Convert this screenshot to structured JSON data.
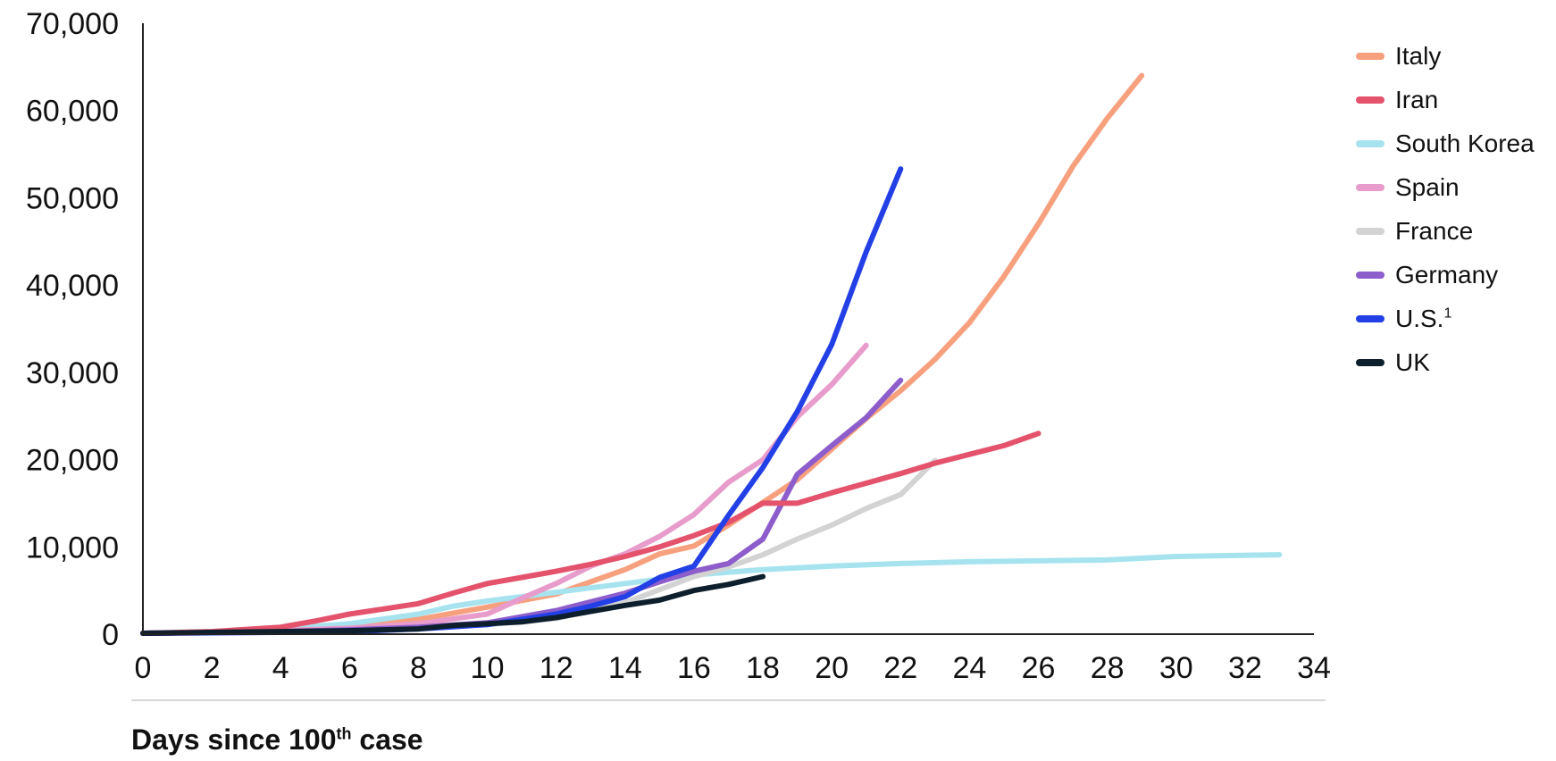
{
  "chart_data": {
    "type": "line",
    "xlabel": {
      "prefix": "Days since 100",
      "sup": "th",
      "suffix": " case"
    },
    "xlim": [
      0,
      34
    ],
    "ylim": [
      0,
      70000
    ],
    "xticks": [
      0,
      2,
      4,
      6,
      8,
      10,
      12,
      14,
      16,
      18,
      20,
      22,
      24,
      26,
      28,
      30,
      32,
      34
    ],
    "xtick_labels": [
      "0",
      "2",
      "4",
      "6",
      "8",
      "10",
      "12",
      "14",
      "16",
      "18",
      "20",
      "22",
      "24",
      "26",
      "28",
      "30",
      "32",
      "34"
    ],
    "yticks": [
      0,
      10000,
      20000,
      30000,
      40000,
      50000,
      60000,
      70000
    ],
    "ytick_labels": [
      "0",
      "10,000",
      "20,000",
      "30,000",
      "40,000",
      "50,000",
      "60,000",
      "70,000"
    ],
    "grid": false,
    "legend_position": "right",
    "series": [
      {
        "name": "Italy",
        "color": "#F7A07E",
        "points": [
          [
            0,
            100
          ],
          [
            2,
            200
          ],
          [
            4,
            400
          ],
          [
            6,
            800
          ],
          [
            8,
            1700
          ],
          [
            10,
            3100
          ],
          [
            12,
            4600
          ],
          [
            14,
            7400
          ],
          [
            15,
            9200
          ],
          [
            16,
            10100
          ],
          [
            17,
            12500
          ],
          [
            18,
            15100
          ],
          [
            19,
            17700
          ],
          [
            20,
            21200
          ],
          [
            21,
            24700
          ],
          [
            22,
            27900
          ],
          [
            23,
            31500
          ],
          [
            24,
            35700
          ],
          [
            25,
            41000
          ],
          [
            26,
            47000
          ],
          [
            27,
            53600
          ],
          [
            28,
            59100
          ],
          [
            29,
            64000
          ]
        ]
      },
      {
        "name": "South Korea",
        "color": "#A6E3EF",
        "points": [
          [
            0,
            100
          ],
          [
            2,
            300
          ],
          [
            4,
            600
          ],
          [
            6,
            1200
          ],
          [
            8,
            2300
          ],
          [
            9,
            3200
          ],
          [
            10,
            3800
          ],
          [
            11,
            4300
          ],
          [
            12,
            4800
          ],
          [
            14,
            5800
          ],
          [
            16,
            6800
          ],
          [
            18,
            7400
          ],
          [
            20,
            7800
          ],
          [
            22,
            8100
          ],
          [
            24,
            8300
          ],
          [
            26,
            8400
          ],
          [
            28,
            8500
          ],
          [
            30,
            8900
          ],
          [
            33,
            9100
          ]
        ]
      },
      {
        "name": "France",
        "color": "#D3D3D3",
        "points": [
          [
            0,
            100
          ],
          [
            2,
            200
          ],
          [
            4,
            300
          ],
          [
            6,
            400
          ],
          [
            8,
            700
          ],
          [
            10,
            1100
          ],
          [
            12,
            1800
          ],
          [
            14,
            3600
          ],
          [
            16,
            6600
          ],
          [
            17,
            7700
          ],
          [
            18,
            9100
          ],
          [
            19,
            10900
          ],
          [
            20,
            12500
          ],
          [
            21,
            14400
          ],
          [
            22,
            16000
          ],
          [
            23,
            19900
          ]
        ]
      },
      {
        "name": "Spain",
        "color": "#E89CCB",
        "points": [
          [
            0,
            100
          ],
          [
            2,
            200
          ],
          [
            4,
            400
          ],
          [
            6,
            700
          ],
          [
            8,
            1200
          ],
          [
            10,
            2300
          ],
          [
            11,
            4100
          ],
          [
            12,
            5800
          ],
          [
            13,
            7800
          ],
          [
            14,
            9200
          ],
          [
            15,
            11200
          ],
          [
            16,
            13700
          ],
          [
            17,
            17400
          ],
          [
            18,
            20000
          ],
          [
            19,
            24900
          ],
          [
            20,
            28600
          ],
          [
            21,
            33100
          ]
        ]
      },
      {
        "name": "Germany",
        "color": "#8D5DCB",
        "points": [
          [
            0,
            100
          ],
          [
            2,
            200
          ],
          [
            4,
            300
          ],
          [
            6,
            500
          ],
          [
            8,
            800
          ],
          [
            10,
            1300
          ],
          [
            12,
            2700
          ],
          [
            14,
            4700
          ],
          [
            15,
            6000
          ],
          [
            16,
            7200
          ],
          [
            17,
            8100
          ],
          [
            18,
            10900
          ],
          [
            19,
            18300
          ],
          [
            20,
            21600
          ],
          [
            21,
            24800
          ],
          [
            22,
            29100
          ]
        ]
      },
      {
        "name": "Iran",
        "color": "#E4526C",
        "points": [
          [
            0,
            100
          ],
          [
            2,
            300
          ],
          [
            4,
            800
          ],
          [
            5,
            1500
          ],
          [
            6,
            2300
          ],
          [
            7,
            2900
          ],
          [
            8,
            3500
          ],
          [
            9,
            4700
          ],
          [
            10,
            5800
          ],
          [
            11,
            6500
          ],
          [
            12,
            7200
          ],
          [
            13,
            8000
          ],
          [
            14,
            8900
          ],
          [
            15,
            10000
          ],
          [
            16,
            11300
          ],
          [
            17,
            12800
          ],
          [
            18,
            15000
          ],
          [
            19,
            15000
          ],
          [
            20,
            16200
          ],
          [
            21,
            17300
          ],
          [
            22,
            18400
          ],
          [
            23,
            19600
          ],
          [
            24,
            20600
          ],
          [
            25,
            21600
          ],
          [
            26,
            23000
          ]
        ]
      },
      {
        "name": "U.S.",
        "name_sup": "1",
        "color": "#2340E6",
        "points": [
          [
            0,
            100
          ],
          [
            4,
            200
          ],
          [
            6,
            300
          ],
          [
            8,
            600
          ],
          [
            10,
            1100
          ],
          [
            12,
            2300
          ],
          [
            13,
            3200
          ],
          [
            14,
            4300
          ],
          [
            15,
            6500
          ],
          [
            16,
            7800
          ],
          [
            17,
            13600
          ],
          [
            18,
            19100
          ],
          [
            19,
            25500
          ],
          [
            20,
            33200
          ],
          [
            21,
            43800
          ],
          [
            22,
            53300
          ]
        ]
      },
      {
        "name": "UK",
        "color": "#0D1F2D",
        "points": [
          [
            0,
            100
          ],
          [
            2,
            200
          ],
          [
            4,
            300
          ],
          [
            6,
            400
          ],
          [
            8,
            600
          ],
          [
            9,
            1000
          ],
          [
            10,
            1200
          ],
          [
            11,
            1400
          ],
          [
            12,
            1900
          ],
          [
            13,
            2600
          ],
          [
            14,
            3300
          ],
          [
            15,
            3900
          ],
          [
            16,
            5000
          ],
          [
            17,
            5700
          ],
          [
            18,
            6600
          ]
        ]
      }
    ],
    "legend_order": [
      "Italy",
      "Iran",
      "South Korea",
      "Spain",
      "France",
      "Germany",
      "U.S.",
      "UK"
    ]
  }
}
